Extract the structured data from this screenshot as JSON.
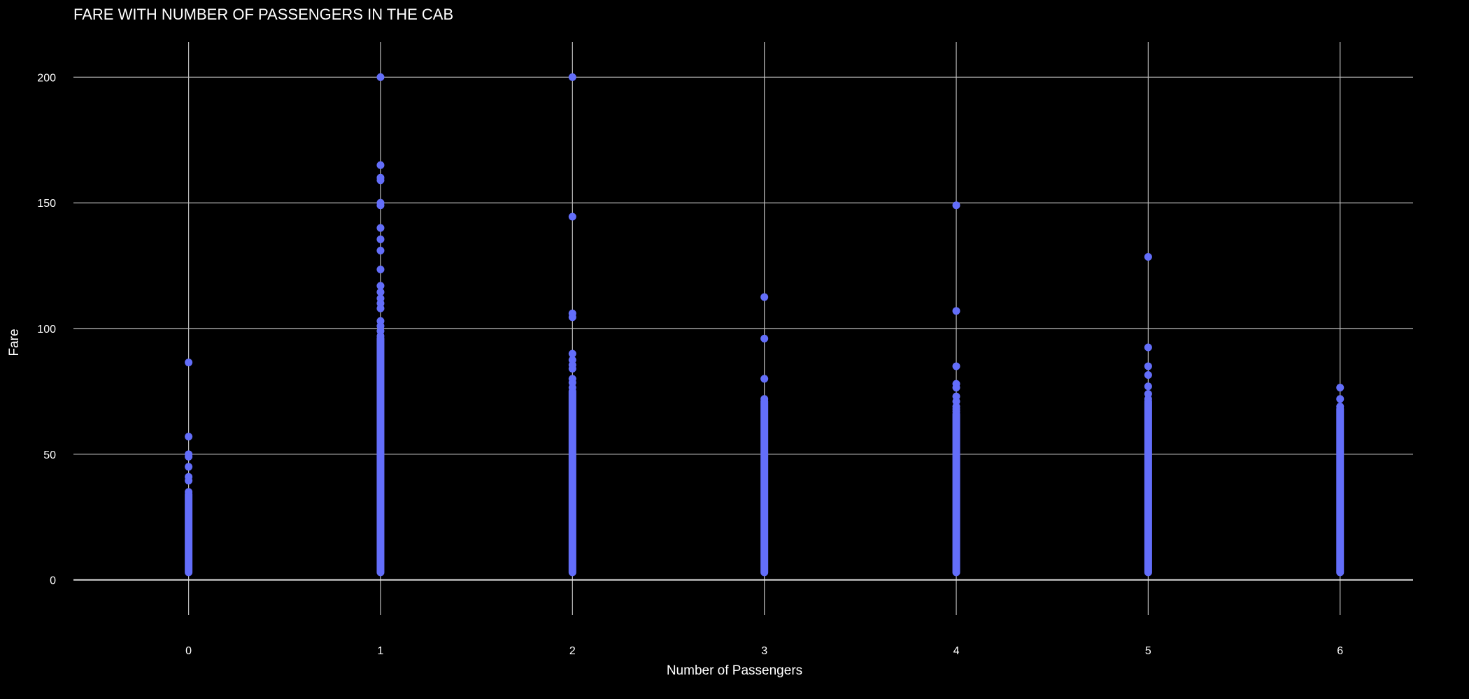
{
  "chart_data": {
    "type": "scatter",
    "title": "FARE WITH NUMBER OF PASSENGERS IN THE CAB",
    "xlabel": "Number of Passengers",
    "ylabel": "Fare",
    "x_ticks": [
      "0",
      "1",
      "2",
      "3",
      "4",
      "5",
      "6"
    ],
    "y_ticks": [
      "0",
      "50",
      "100",
      "150",
      "200"
    ],
    "xlim": [
      -0.6,
      6.38
    ],
    "ylim": [
      -14,
      214
    ],
    "grid": true,
    "marker_color": "#636efa",
    "background": "#000000",
    "grid_color": "#bfbfbf",
    "series": [
      {
        "points_dense": [
          {
            "x": 0,
            "y_min": 3,
            "y_max": 34
          },
          {
            "x": 1,
            "y_min": 3,
            "y_max": 96
          },
          {
            "x": 2,
            "y_min": 3,
            "y_max": 75
          },
          {
            "x": 3,
            "y_min": 3,
            "y_max": 71
          },
          {
            "x": 4,
            "y_min": 3,
            "y_max": 66
          },
          {
            "x": 5,
            "y_min": 3,
            "y_max": 71
          },
          {
            "x": 6,
            "y_min": 3,
            "y_max": 68
          }
        ],
        "points": [
          {
            "x": 0,
            "y": 86.5
          },
          {
            "x": 0,
            "y": 57
          },
          {
            "x": 0,
            "y": 50
          },
          {
            "x": 0,
            "y": 49
          },
          {
            "x": 0,
            "y": 45
          },
          {
            "x": 0,
            "y": 41
          },
          {
            "x": 0,
            "y": 39.5
          },
          {
            "x": 0,
            "y": 35
          },
          {
            "x": 1,
            "y": 200
          },
          {
            "x": 1,
            "y": 165
          },
          {
            "x": 1,
            "y": 160
          },
          {
            "x": 1,
            "y": 159
          },
          {
            "x": 1,
            "y": 150
          },
          {
            "x": 1,
            "y": 149
          },
          {
            "x": 1,
            "y": 140
          },
          {
            "x": 1,
            "y": 135.5
          },
          {
            "x": 1,
            "y": 131
          },
          {
            "x": 1,
            "y": 123.5
          },
          {
            "x": 1,
            "y": 117
          },
          {
            "x": 1,
            "y": 114.5
          },
          {
            "x": 1,
            "y": 112
          },
          {
            "x": 1,
            "y": 110
          },
          {
            "x": 1,
            "y": 108
          },
          {
            "x": 1,
            "y": 103
          },
          {
            "x": 1,
            "y": 101
          },
          {
            "x": 1,
            "y": 99
          },
          {
            "x": 1,
            "y": 97
          },
          {
            "x": 2,
            "y": 200
          },
          {
            "x": 2,
            "y": 144.5
          },
          {
            "x": 2,
            "y": 106
          },
          {
            "x": 2,
            "y": 104.5
          },
          {
            "x": 2,
            "y": 90
          },
          {
            "x": 2,
            "y": 87.5
          },
          {
            "x": 2,
            "y": 85.5
          },
          {
            "x": 2,
            "y": 84
          },
          {
            "x": 2,
            "y": 80
          },
          {
            "x": 2,
            "y": 78.5
          },
          {
            "x": 2,
            "y": 76.5
          },
          {
            "x": 3,
            "y": 112.5
          },
          {
            "x": 3,
            "y": 96
          },
          {
            "x": 3,
            "y": 80
          },
          {
            "x": 3,
            "y": 72
          },
          {
            "x": 4,
            "y": 149
          },
          {
            "x": 4,
            "y": 107
          },
          {
            "x": 4,
            "y": 85
          },
          {
            "x": 4,
            "y": 78
          },
          {
            "x": 4,
            "y": 76.5
          },
          {
            "x": 4,
            "y": 73
          },
          {
            "x": 4,
            "y": 71
          },
          {
            "x": 4,
            "y": 69
          },
          {
            "x": 4,
            "y": 68
          },
          {
            "x": 4,
            "y": 67
          },
          {
            "x": 5,
            "y": 128.5
          },
          {
            "x": 5,
            "y": 92.5
          },
          {
            "x": 5,
            "y": 85
          },
          {
            "x": 5,
            "y": 81.5
          },
          {
            "x": 5,
            "y": 77
          },
          {
            "x": 5,
            "y": 74
          },
          {
            "x": 5,
            "y": 72
          },
          {
            "x": 6,
            "y": 76.5
          },
          {
            "x": 6,
            "y": 72
          },
          {
            "x": 6,
            "y": 69
          }
        ]
      }
    ]
  }
}
